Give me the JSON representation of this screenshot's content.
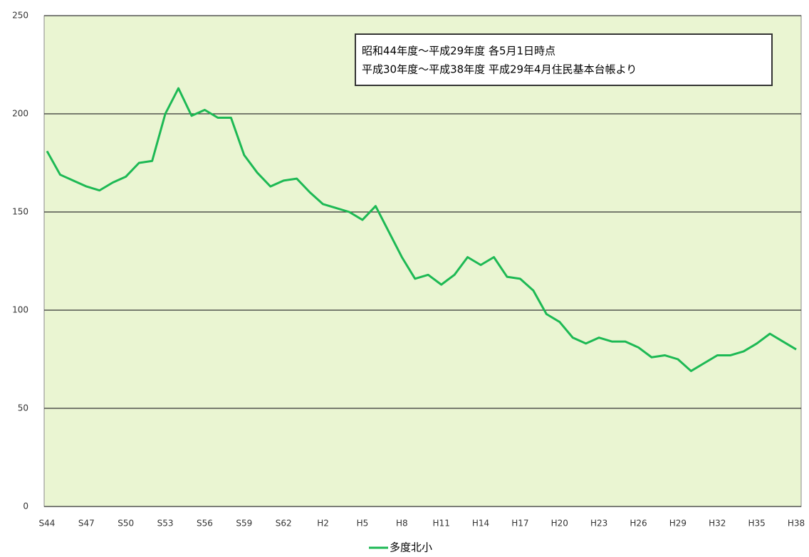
{
  "chart_data": {
    "type": "line",
    "annotation": [
      "昭和44年度～平成29年度 各5月1日時点",
      "平成30年度～平成38年度 平成29年4月住民基本台帳より"
    ],
    "categories": [
      "S44",
      null,
      null,
      "S47",
      null,
      null,
      "S50",
      null,
      null,
      "S53",
      null,
      null,
      "S56",
      null,
      null,
      "S59",
      null,
      null,
      "S62",
      null,
      null,
      "H2",
      null,
      null,
      "H5",
      null,
      null,
      "H8",
      null,
      null,
      "H11",
      null,
      null,
      "H14",
      null,
      null,
      "H17",
      null,
      null,
      "H20",
      null,
      null,
      "H23",
      null,
      null,
      "H26",
      null,
      null,
      "H29",
      null,
      null,
      "H32",
      null,
      null,
      "H35",
      null,
      null,
      "H38"
    ],
    "series": [
      {
        "name": "多度北小",
        "color": "#1db954",
        "values": [
          181,
          169,
          166,
          163,
          161,
          165,
          168,
          175,
          176,
          200,
          213,
          199,
          202,
          198,
          198,
          179,
          170,
          163,
          166,
          167,
          160,
          154,
          152,
          150,
          146,
          153,
          140,
          127,
          116,
          118,
          113,
          118,
          127,
          123,
          127,
          117,
          116,
          110,
          98,
          94,
          86,
          83,
          86,
          84,
          84,
          81,
          76,
          77,
          75,
          69,
          73,
          77,
          77,
          79,
          83,
          88,
          84,
          80
        ]
      }
    ],
    "ylim": [
      0,
      250
    ],
    "yticks": [
      0,
      50,
      100,
      150,
      200,
      250
    ],
    "grid": true,
    "legend": "bottom"
  }
}
